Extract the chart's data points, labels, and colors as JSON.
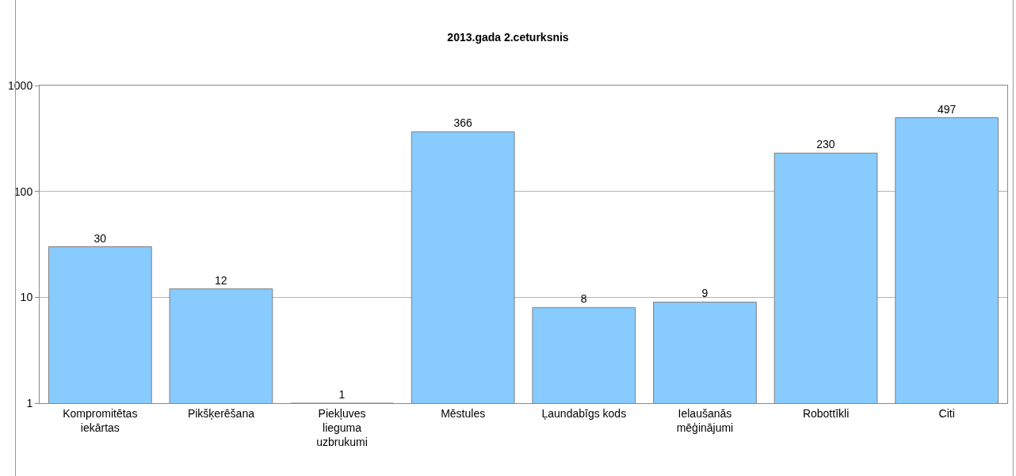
{
  "chart_data": {
    "type": "bar",
    "title": "2013.gada 2.ceturksnis",
    "categories": [
      "Kompromitētas iekārtas",
      "Pikšķerēšana",
      "Piekļuves lieguma uzbrukumi",
      "Mēstules",
      "Ļaundabīgs kods",
      "Ielaušanās mēģinājumi",
      "Robottīkli",
      "Citi"
    ],
    "values": [
      30,
      12,
      1,
      366,
      8,
      9,
      230,
      497
    ],
    "color": "#87cbff",
    "log": true,
    "ylim": [
      1,
      1000
    ],
    "yticks": [
      1,
      10,
      100,
      1000
    ],
    "grid": "y",
    "data_labels": true,
    "legend": false
  }
}
